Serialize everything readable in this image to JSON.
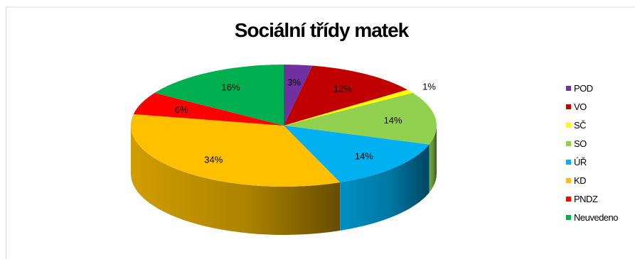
{
  "chart_data": {
    "type": "pie",
    "title": "Sociální třídy matek",
    "style": "3d",
    "legend_position": "right",
    "series": [
      {
        "name": "",
        "categories": [
          "POD",
          "VO",
          "SČ",
          "SO",
          "ÚŘ",
          "KD",
          "PNDZ",
          "Neuvedeno"
        ],
        "values": [
          3,
          12,
          1,
          14,
          14,
          34,
          6,
          16
        ],
        "labels": [
          "3%",
          "12%",
          "1%",
          "14%",
          "14%",
          "34%",
          "6%",
          "16%"
        ],
        "colors": [
          "#7030a0",
          "#c00000",
          "#ffff00",
          "#92d050",
          "#00b0f0",
          "#ffc000",
          "#ff0000",
          "#00b050"
        ]
      }
    ]
  }
}
